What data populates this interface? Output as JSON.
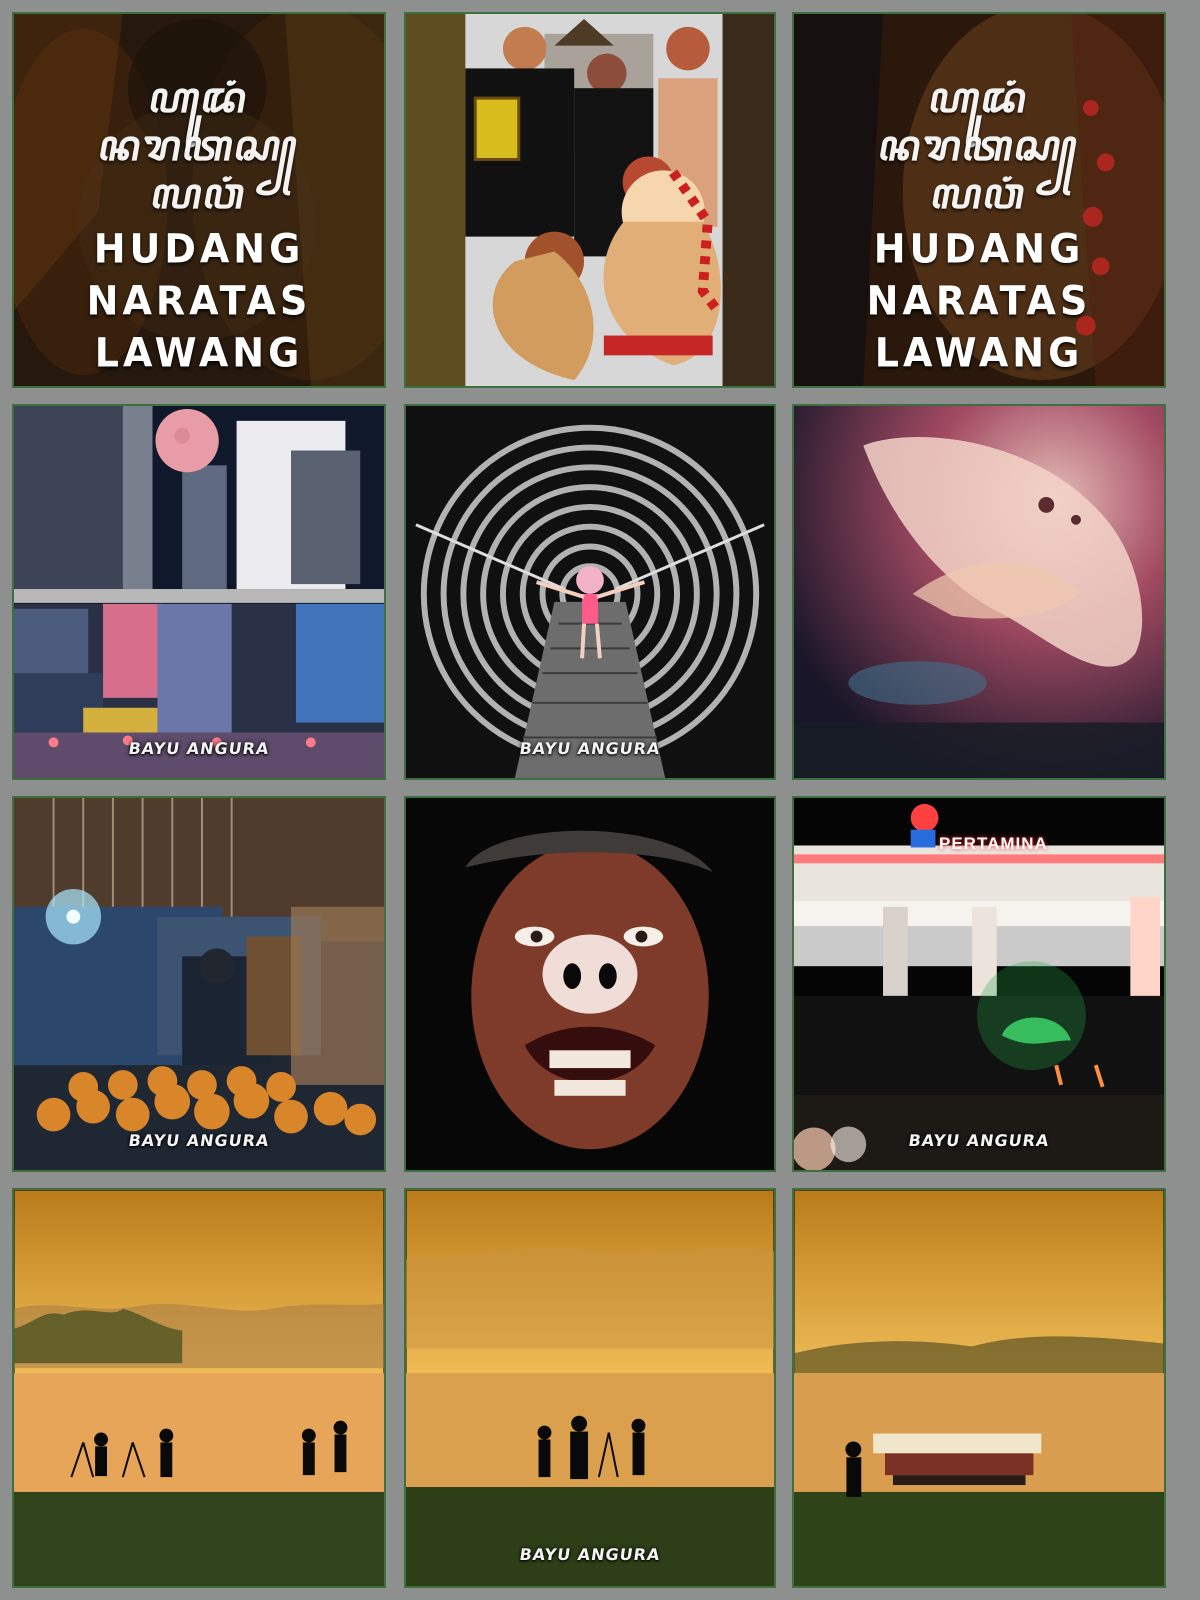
{
  "tiles": {
    "t1": {
      "script": [
        "ꦲꦸꦢꦁ",
        "ꦤꦫꦠꦱ꧀",
        "ꦭꦮꦁ"
      ],
      "title": [
        "HUDANG",
        "NARATAS",
        "LAWANG"
      ]
    },
    "t3": {
      "script": [
        "ꦲꦸꦢꦁ",
        "ꦤꦫꦠꦱ꧀",
        "ꦭꦮꦁ"
      ],
      "title": [
        "HUDANG",
        "NARATAS",
        "LAWANG"
      ]
    },
    "watermarks": {
      "w4": "BAYU ANGURA",
      "w5": "BAYU ANGURA",
      "w7": "BAYU ANGURA",
      "w9": "BAYU ANGURA",
      "w11": "BAYU ANGURA"
    },
    "sign_text": "PERTAMINA"
  },
  "colors": {
    "border": "#3e6f3e",
    "background": "#8f9090",
    "warm": "#e8ab3f",
    "dark": "#050505"
  }
}
